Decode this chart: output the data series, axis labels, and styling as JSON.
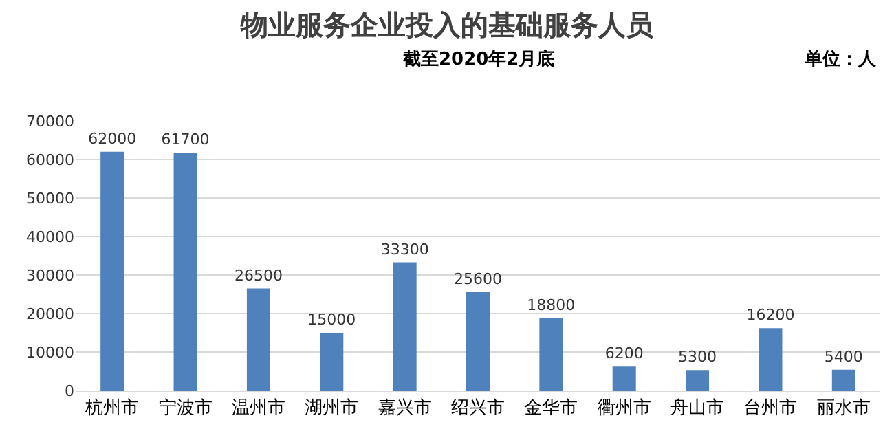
{
  "chart_data": {
    "type": "bar",
    "title": "物业服务企业投入的基础服务人员",
    "subtitle": "截至2020年2月底",
    "annotations": [
      "单位：人"
    ],
    "categories": [
      "杭州市",
      "宁波市",
      "温州市",
      "湖州市",
      "嘉兴市",
      "绍兴市",
      "金华市",
      "衢州市",
      "舟山市",
      "台州市",
      "丽水市"
    ],
    "values": [
      62000,
      61700,
      26500,
      15000,
      33300,
      25600,
      18800,
      6200,
      5300,
      16200,
      5400
    ],
    "color": "#4f81bd",
    "ylim": [
      0,
      70000
    ],
    "yticks": [
      0,
      10000,
      20000,
      30000,
      40000,
      50000,
      60000,
      70000
    ],
    "grid": "y",
    "data_labels": true,
    "legend": false
  }
}
